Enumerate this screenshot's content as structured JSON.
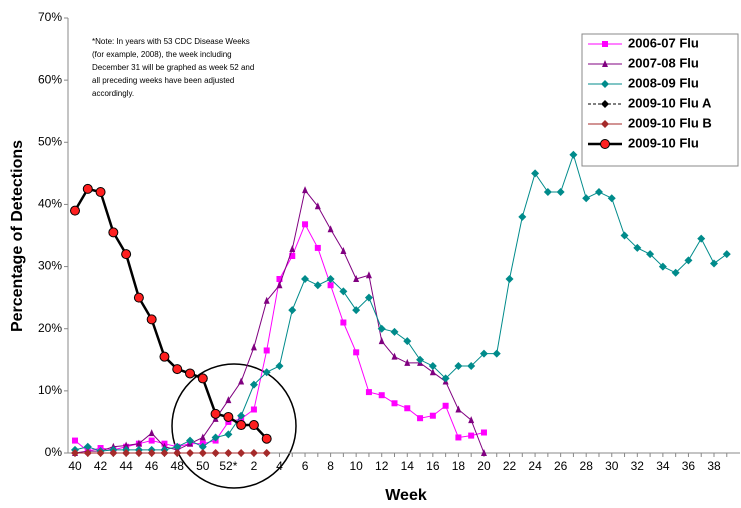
{
  "chart_data": {
    "type": "line",
    "xlabel": "Week",
    "ylabel": "Percentage of Detections",
    "note": [
      "*Note: In years with 53 CDC Disease Weeks",
      "(for example, 2008), the week including",
      "December 31 will be graphed as week 52 and",
      "all preceding weeks have been adjusted",
      "accordingly."
    ],
    "categories": [
      "40",
      null,
      "42",
      null,
      "44",
      null,
      "46",
      null,
      "48",
      null,
      "50",
      null,
      "52*",
      null,
      "2",
      null,
      "4",
      null,
      "6",
      null,
      "8",
      null,
      "10",
      null,
      "12",
      null,
      "14",
      null,
      "16",
      null,
      "18",
      null,
      "20",
      null,
      "22",
      null,
      "24",
      null,
      "26",
      null,
      "28",
      null,
      "30",
      null,
      "32",
      null,
      "34",
      null,
      "36",
      null,
      "38",
      null
    ],
    "ylim": [
      0,
      70
    ],
    "yticks": [
      {
        "value": 0,
        "label": "0%"
      },
      {
        "value": 10,
        "label": "10%"
      },
      {
        "value": 20,
        "label": "20%"
      },
      {
        "value": 30,
        "label": "30%"
      },
      {
        "value": 40,
        "label": "40%"
      },
      {
        "value": 50,
        "label": "50%"
      },
      {
        "value": 60,
        "label": "60%"
      },
      {
        "value": 70,
        "label": "70%"
      }
    ],
    "legend": "upper right",
    "series": [
      {
        "name": "2006-07 Flu",
        "color": "#ff00ff",
        "marker": "square",
        "dash": false,
        "width": 1,
        "values": [
          2,
          0.3,
          0.8,
          0.5,
          1,
          1.5,
          2,
          1.5,
          1,
          1.5,
          1.5,
          2,
          5,
          5.5,
          7,
          16.5,
          28,
          31.7,
          36.8,
          33,
          27,
          21,
          16.2,
          9.8,
          9.3,
          8,
          7.2,
          5.6,
          6,
          7.6,
          2.5,
          2.8,
          3.3,
          null,
          null,
          null,
          null,
          null,
          null,
          null,
          null,
          null,
          null,
          null,
          null,
          null,
          null,
          null,
          null,
          null,
          null,
          null
        ]
      },
      {
        "name": "2007-08 Flu",
        "color": "#800080",
        "marker": "triangle",
        "dash": false,
        "width": 1,
        "values": [
          0,
          0.3,
          0.3,
          1,
          1.2,
          1.5,
          3.2,
          1,
          0.5,
          1.5,
          2.5,
          5.5,
          8.5,
          11.5,
          17,
          24.5,
          27,
          32.8,
          42.3,
          39.7,
          36,
          32.5,
          28,
          28.6,
          18,
          15.5,
          14.5,
          14.5,
          13,
          11.5,
          7,
          5.3,
          0,
          null,
          null,
          null,
          null,
          null,
          null,
          null,
          null,
          null,
          null,
          null,
          null,
          null,
          null,
          null,
          null,
          null,
          null,
          null
        ]
      },
      {
        "name": "2008-09 Flu",
        "color": "#008b8b",
        "marker": "diamond",
        "dash": false,
        "width": 1,
        "values": [
          0.5,
          1,
          0.3,
          0.5,
          0.5,
          0.5,
          0.5,
          0.5,
          1,
          2,
          1,
          2.5,
          3,
          6,
          11,
          13,
          14,
          23,
          28,
          27,
          28,
          26,
          23,
          25,
          20,
          19.5,
          18,
          15,
          14,
          12,
          14,
          14,
          16,
          16,
          28,
          38,
          45,
          42,
          42,
          48,
          41,
          42,
          41,
          35,
          33,
          32,
          30,
          29,
          31,
          34.5,
          30.5,
          32
        ]
      },
      {
        "name": "2009-10 Flu A",
        "color": "#000000",
        "marker": "diamond",
        "dash": true,
        "width": 1,
        "values": [
          38.9,
          42.4,
          41.9,
          35.4,
          31.9,
          24.9,
          21.4,
          15.4,
          13.4,
          12.7,
          11.9,
          6.2,
          5.7,
          4.4,
          4.4,
          2.2,
          null,
          null,
          null,
          null,
          null,
          null,
          null,
          null,
          null,
          null,
          null,
          null,
          null,
          null,
          null,
          null,
          null,
          null,
          null,
          null,
          null,
          null,
          null,
          null,
          null,
          null,
          null,
          null,
          null,
          null,
          null,
          null,
          null,
          null,
          null,
          null
        ]
      },
      {
        "name": "2009-10 Flu B",
        "color": "#a52a2a",
        "marker": "diamond",
        "dash": false,
        "width": 1,
        "values": [
          0,
          0,
          0,
          0,
          0,
          0,
          0,
          0,
          0,
          0,
          0,
          0,
          0,
          0,
          0,
          0,
          null,
          null,
          null,
          null,
          null,
          null,
          null,
          null,
          null,
          null,
          null,
          null,
          null,
          null,
          null,
          null,
          null,
          null,
          null,
          null,
          null,
          null,
          null,
          null,
          null,
          null,
          null,
          null,
          null,
          null,
          null,
          null,
          null,
          null,
          null,
          null
        ]
      },
      {
        "name": "2009-10 Flu",
        "color": "#000000",
        "fill": "#ff2020",
        "marker": "circle",
        "dash": false,
        "width": 2.5,
        "values": [
          39,
          42.5,
          42,
          35.5,
          32,
          25,
          21.5,
          15.5,
          13.5,
          12.8,
          12,
          6.3,
          5.8,
          4.5,
          4.5,
          2.3,
          null,
          null,
          null,
          null,
          null,
          null,
          null,
          null,
          null,
          null,
          null,
          null,
          null,
          null,
          null,
          null,
          null,
          null,
          null,
          null,
          null,
          null,
          null,
          null,
          null,
          null,
          null,
          null,
          null,
          null,
          null,
          null,
          null,
          null,
          null,
          null
        ]
      }
    ]
  }
}
